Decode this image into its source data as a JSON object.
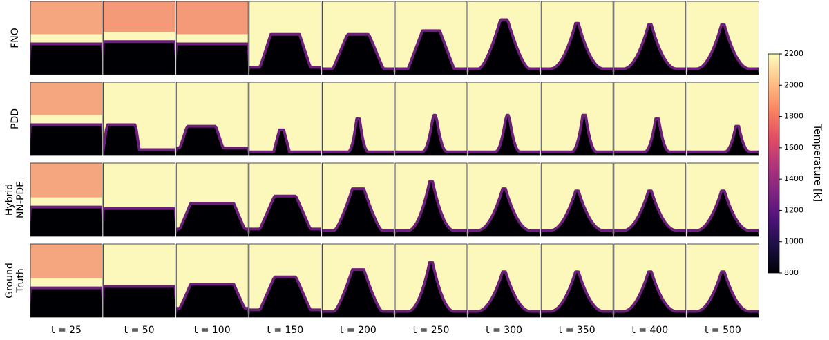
{
  "chart_data": {
    "type": "heatmap-grid",
    "rows": [
      [
        "FNO"
      ],
      [
        "PDD"
      ],
      [
        "Hybrid",
        "NN-PDE"
      ],
      [
        "Ground",
        "Truth"
      ]
    ],
    "columns": [
      "t = 25",
      "t = 50",
      "t = 100",
      "t = 150",
      "t = 200",
      "t = 250",
      "t = 300",
      "t = 350",
      "t = 400",
      "t = 500"
    ],
    "colorbar_label": "Temperature [k]",
    "colormap": "magma",
    "clim": [
      800,
      2200
    ],
    "cticks": [
      800,
      1000,
      1200,
      1400,
      1600,
      1800,
      2000,
      2200
    ]
  }
}
